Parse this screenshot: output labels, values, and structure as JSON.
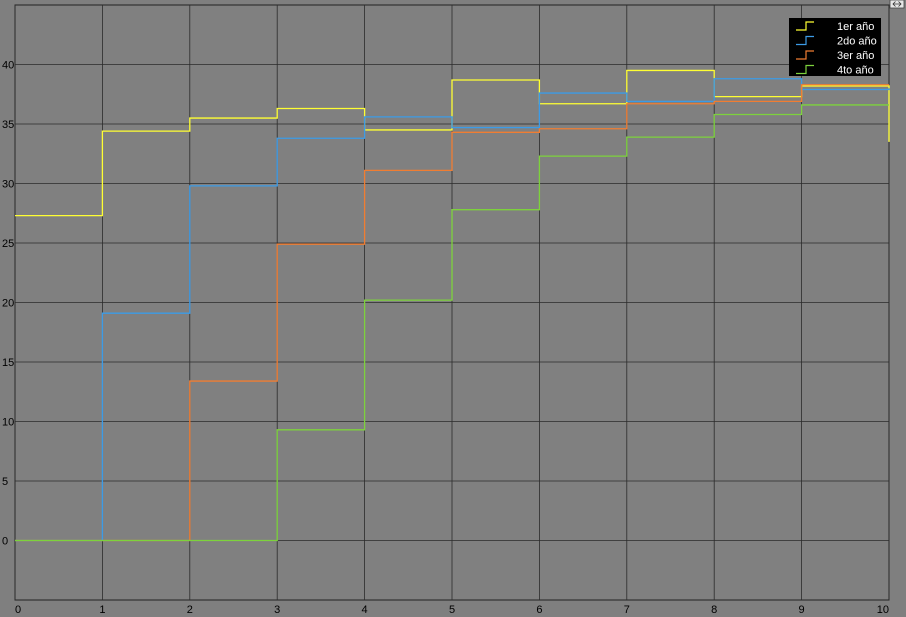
{
  "window": {
    "background_color": "#7f7f7f",
    "corner_icon": "expand-icon"
  },
  "chart_data": {
    "type": "line",
    "step": true,
    "title": "",
    "xlabel": "",
    "ylabel": "",
    "xlim": [
      0,
      10
    ],
    "ylim": [
      -5,
      45
    ],
    "xticks": [
      "0",
      "1",
      "2",
      "3",
      "4",
      "5",
      "6",
      "7",
      "8",
      "9",
      "10"
    ],
    "yticks": [
      "0",
      "5",
      "10",
      "15",
      "20",
      "25",
      "30",
      "35",
      "40"
    ],
    "grid": true,
    "legend_position": "top-right",
    "colors": {
      "axes_background": "#808080",
      "grid": "#2b2b2b",
      "tick_text": "#000000",
      "legend_background": "#000000",
      "legend_text": "#ffffff"
    },
    "series": [
      {
        "name": "1er año",
        "color": "#ffff33",
        "x": [
          0,
          1,
          2,
          3,
          4,
          5,
          6,
          7,
          8,
          9,
          10
        ],
        "values": [
          27.3,
          34.4,
          35.5,
          36.3,
          34.5,
          38.7,
          36.7,
          39.5,
          37.3,
          38.2,
          33.5
        ]
      },
      {
        "name": "2do año",
        "color": "#3c9be6",
        "x": [
          0,
          1,
          2,
          3,
          4,
          5,
          6,
          7,
          8,
          9,
          10
        ],
        "values": [
          0,
          19.1,
          29.8,
          33.8,
          35.6,
          34.7,
          37.6,
          36.9,
          38.8,
          37.9,
          38.0
        ]
      },
      {
        "name": "3er año",
        "color": "#f07d32",
        "x": [
          0,
          1,
          2,
          3,
          4,
          5,
          6,
          7,
          8,
          9,
          10
        ],
        "values": [
          0,
          0,
          13.4,
          24.9,
          31.1,
          34.3,
          34.6,
          36.7,
          36.9,
          38.3,
          38.3
        ]
      },
      {
        "name": "4to año",
        "color": "#7dd23c",
        "x": [
          0,
          1,
          2,
          3,
          4,
          5,
          6,
          7,
          8,
          9,
          10
        ],
        "values": [
          0,
          0,
          0,
          9.3,
          20.2,
          27.8,
          32.3,
          33.9,
          35.8,
          36.6,
          36.6
        ]
      }
    ]
  }
}
